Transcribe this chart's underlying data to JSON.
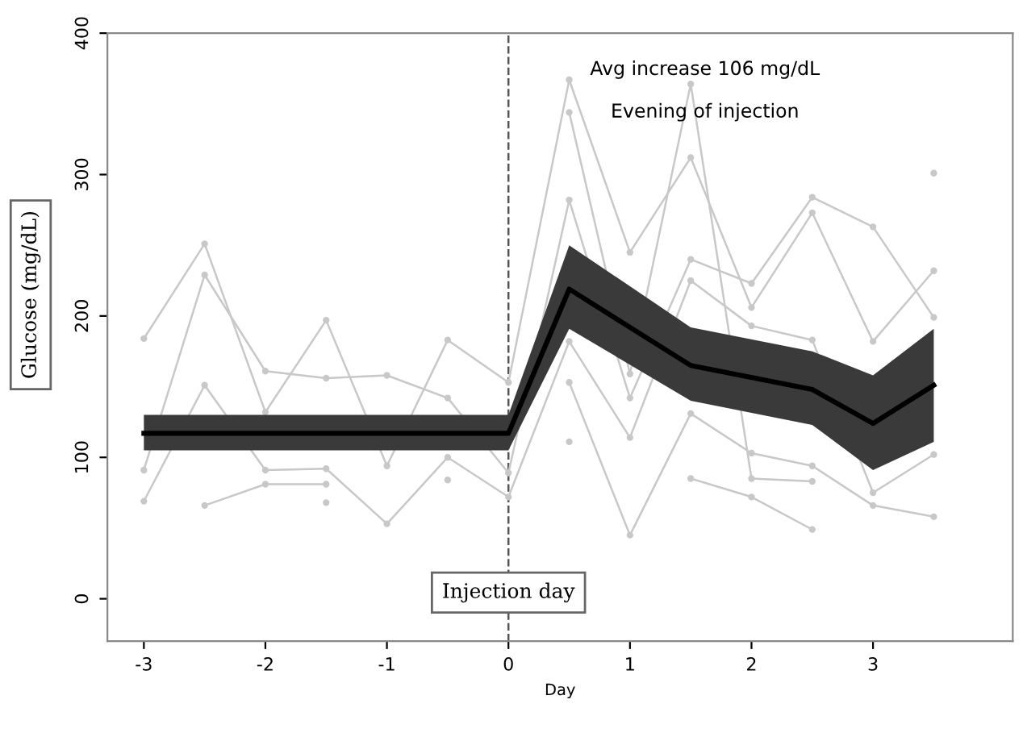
{
  "chart_data": {
    "type": "line",
    "xlabel": "Day",
    "ylabel": "Glucose (mg/dL)",
    "x": [
      -3,
      -2.5,
      -2,
      -1.5,
      -1,
      -0.5,
      0,
      0.5,
      1,
      1.5,
      2,
      2.5,
      3,
      3.5
    ],
    "series": [
      {
        "color": "#c8c8c8",
        "marker": "circle",
        "values": [
          184,
          251,
          132,
          197,
          94,
          183,
          153,
          367,
          245,
          312,
          206,
          273,
          182,
          232
        ]
      },
      {
        "color": "#c8c8c8",
        "marker": "circle",
        "values": [
          91,
          229,
          161,
          156,
          158,
          142,
          89,
          282,
          142,
          240,
          223,
          284,
          263,
          199
        ]
      },
      {
        "color": "#c8c8c8",
        "marker": "circle",
        "values": [
          69,
          151,
          91,
          92,
          53,
          100,
          72,
          182,
          114,
          225,
          193,
          183,
          75,
          102
        ]
      },
      {
        "color": "#c8c8c8",
        "marker": "circle",
        "values": [
          null,
          66,
          81,
          81,
          null,
          84,
          null,
          153,
          45,
          131,
          103,
          94,
          66,
          58
        ]
      },
      {
        "color": "#c8c8c8",
        "marker": "circle",
        "values": [
          null,
          null,
          null,
          68,
          null,
          null,
          null,
          344,
          159,
          364,
          85,
          83,
          null,
          301
        ]
      },
      {
        "color": "#c8c8c8",
        "marker": "circle",
        "values": [
          null,
          null,
          null,
          null,
          null,
          null,
          null,
          111,
          null,
          85,
          72,
          49,
          null,
          null
        ]
      },
      {
        "color": "#000000",
        "marker": "none",
        "x": [
          -3,
          0,
          0.5,
          1.5,
          2.5,
          3,
          3.5
        ],
        "values": [
          117,
          117,
          219,
          165,
          148,
          124,
          151
        ],
        "lower": [
          105,
          105,
          191,
          140,
          123,
          91,
          111
        ],
        "upper": [
          130,
          130,
          250,
          192,
          175,
          158,
          191
        ]
      }
    ],
    "xlim": [
      -3.3,
      4.15
    ],
    "ylim": [
      -30,
      400
    ],
    "xticks": [
      -3,
      -2,
      -1,
      0,
      1,
      2,
      3
    ],
    "yticks": [
      0,
      100,
      200,
      300,
      400
    ],
    "ref_lines": [
      {
        "axis": "x",
        "value": 0,
        "label": "Injection day",
        "line_style": "dashed",
        "color": "#555555"
      }
    ],
    "annotations": [
      "Avg increase 106 mg/dL",
      "Evening of injection"
    ],
    "grid": false,
    "line_style": "solid"
  }
}
